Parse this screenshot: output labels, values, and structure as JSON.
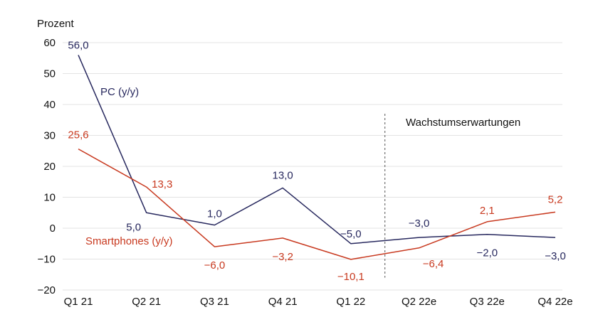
{
  "chart_data": {
    "type": "line",
    "ylabel": "Prozent",
    "categories": [
      "Q1 21",
      "Q2 21",
      "Q3 21",
      "Q4 21",
      "Q1 22",
      "Q2 22e",
      "Q3 22e",
      "Q4 22e"
    ],
    "ylim": [
      -20,
      60
    ],
    "yticks": [
      "60",
      "50",
      "40",
      "30",
      "20",
      "10",
      "0",
      "−10",
      "−20"
    ],
    "grid": true,
    "series": [
      {
        "name": "PC (y/y)",
        "color": "#27285e",
        "values": [
          56.0,
          5.0,
          1.0,
          13.0,
          -5.0,
          -3.0,
          -2.0,
          -3.0
        ],
        "labels": [
          "56,0",
          "5,0",
          "1,0",
          "13,0",
          "−5,0",
          "−3,0",
          "−2,0",
          "−3,0"
        ]
      },
      {
        "name": "Smartphones (y/y)",
        "color": "#c8391f",
        "values": [
          25.6,
          13.3,
          -6.0,
          -3.2,
          -10.1,
          -6.4,
          2.1,
          5.2
        ],
        "labels": [
          "25,6",
          "13,3",
          "−6,0",
          "−3,2",
          "−10,1",
          "−6,4",
          "2,1",
          "5,2"
        ]
      }
    ],
    "annotations": [
      {
        "text": "Wachstumserwartungen",
        "between": [
          "Q1 22",
          "Q2 22e"
        ]
      }
    ]
  }
}
